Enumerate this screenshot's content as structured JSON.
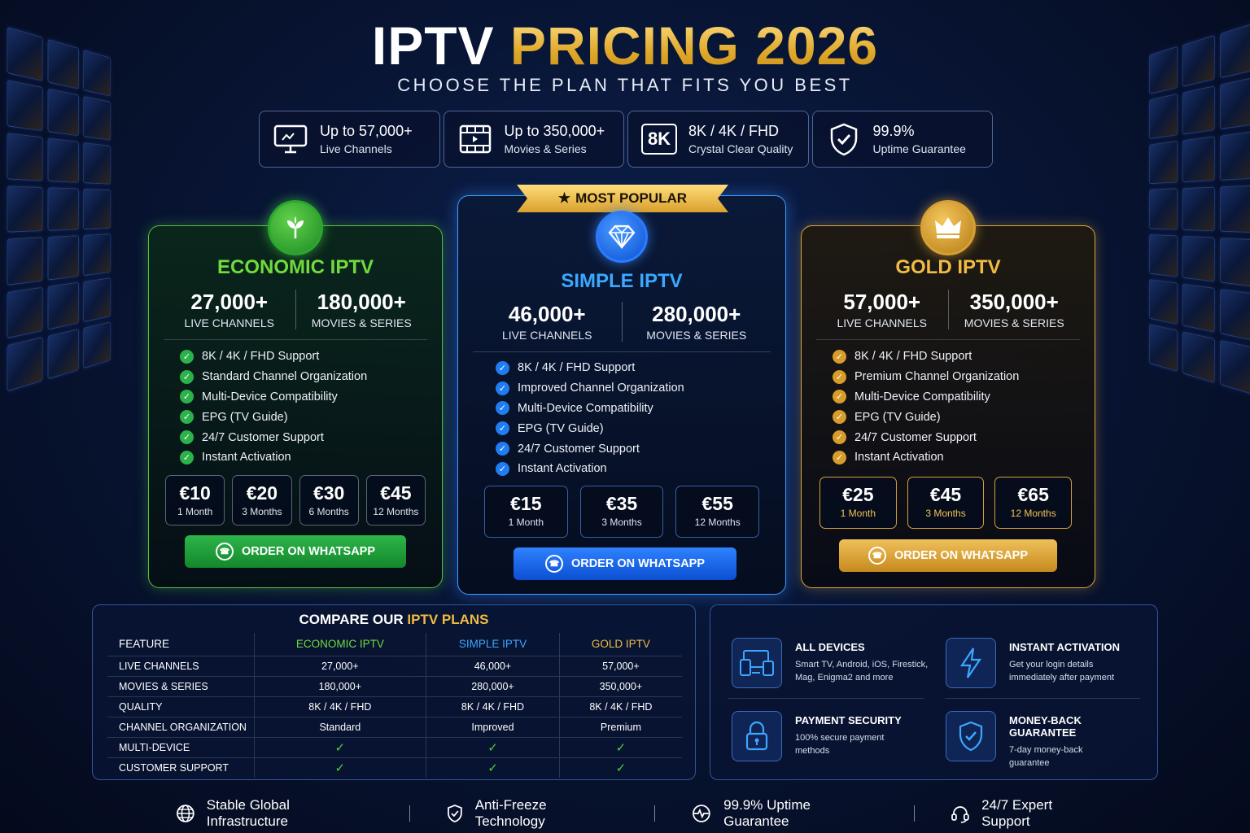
{
  "header": {
    "title_white": "IPTV",
    "title_gold": "PRICING 2026",
    "subtitle": "CHOOSE THE PLAN THAT FITS YOU BEST"
  },
  "stats": [
    {
      "icon": "monitor-icon",
      "big": "Up to 57,000+",
      "small": "Live Channels"
    },
    {
      "icon": "film-icon",
      "big": "Up to 350,000+",
      "small": "Movies & Series"
    },
    {
      "icon": "8k-badge-icon",
      "badge": "8K",
      "big": "8K / 4K / FHD",
      "small": "Crystal Clear Quality"
    },
    {
      "icon": "shield-check-icon",
      "big": "99.9%",
      "small": "Uptime Guarantee"
    }
  ],
  "plans": {
    "economic": {
      "name": "ECONOMIC IPTV",
      "color": "#6fdc3c",
      "icon": "leaf-icon",
      "channels": "27,000+",
      "channels_label": "LIVE CHANNELS",
      "movies": "180,000+",
      "movies_label": "MOVIES & SERIES",
      "features": [
        "8K / 4K / FHD Support",
        "Standard Channel Organization",
        "Multi-Device Compatibility",
        "EPG (TV Guide)",
        "24/7 Customer Support",
        "Instant Activation"
      ],
      "prices": [
        {
          "amount": "€10",
          "period": "1 Month"
        },
        {
          "amount": "€20",
          "period": "3 Months"
        },
        {
          "amount": "€30",
          "period": "6 Months"
        },
        {
          "amount": "€45",
          "period": "12 Months"
        }
      ],
      "order_label": "ORDER ON WHATSAPP"
    },
    "simple": {
      "name": "SIMPLE IPTV",
      "color": "#3aa8ff",
      "icon": "diamond-icon",
      "ribbon": "MOST POPULAR",
      "ribbon_star": "★",
      "channels": "46,000+",
      "channels_label": "LIVE CHANNELS",
      "movies": "280,000+",
      "movies_label": "MOVIES & SERIES",
      "features": [
        "8K / 4K / FHD Support",
        "Improved Channel Organization",
        "Multi-Device Compatibility",
        "EPG (TV Guide)",
        "24/7 Customer Support",
        "Instant Activation"
      ],
      "prices": [
        {
          "amount": "€15",
          "period": "1 Month"
        },
        {
          "amount": "€35",
          "period": "3 Months"
        },
        {
          "amount": "€55",
          "period": "12 Months"
        }
      ],
      "order_label": "ORDER ON WHATSAPP"
    },
    "gold": {
      "name": "GOLD IPTV",
      "color": "#f0bb45",
      "icon": "crown-icon",
      "channels": "57,000+",
      "channels_label": "LIVE CHANNELS",
      "movies": "350,000+",
      "movies_label": "MOVIES & SERIES",
      "features": [
        "8K / 4K / FHD Support",
        "Premium Channel Organization",
        "Multi-Device Compatibility",
        "EPG (TV Guide)",
        "24/7 Customer Support",
        "Instant Activation"
      ],
      "prices": [
        {
          "amount": "€25",
          "period": "1 Month"
        },
        {
          "amount": "€45",
          "period": "3 Months"
        },
        {
          "amount": "€65",
          "period": "12 Months"
        }
      ],
      "order_label": "ORDER ON WHATSAPP"
    }
  },
  "compare": {
    "title_white": "COMPARE OUR",
    "title_gold": "IPTV PLANS",
    "headers": [
      "FEATURE",
      "ECONOMIC IPTV",
      "SIMPLE IPTV",
      "GOLD IPTV"
    ],
    "rows": [
      [
        "LIVE CHANNELS",
        "27,000+",
        "46,000+",
        "57,000+"
      ],
      [
        "MOVIES & SERIES",
        "180,000+",
        "280,000+",
        "350,000+"
      ],
      [
        "QUALITY",
        "8K / 4K / FHD",
        "8K / 4K / FHD",
        "8K / 4K / FHD"
      ],
      [
        "CHANNEL ORGANIZATION",
        "Standard",
        "Improved",
        "Premium"
      ],
      [
        "MULTI-DEVICE",
        "✓",
        "✓",
        "✓"
      ],
      [
        "CUSTOMER SUPPORT",
        "✓",
        "✓",
        "✓"
      ]
    ]
  },
  "benefits": [
    {
      "icon": "devices-icon",
      "title": "ALL DEVICES",
      "desc1": "Smart TV, Android, iOS, Firestick,",
      "desc2": "Mag, Enigma2 and more"
    },
    {
      "icon": "lightning-icon",
      "title": "INSTANT ACTIVATION",
      "desc1": "Get your login details",
      "desc2": "immediately after payment"
    },
    {
      "icon": "lock-icon",
      "title": "PAYMENT SECURITY",
      "desc1": "100% secure payment",
      "desc2": "methods"
    },
    {
      "icon": "shield-check-icon",
      "title": "MONEY-BACK GUARANTEE",
      "desc1": "7-day money-back",
      "desc2": "guarantee"
    }
  ],
  "footer": [
    {
      "icon": "globe-icon",
      "label": "Stable Global Infrastructure"
    },
    {
      "icon": "shield-icon",
      "label": "Anti-Freeze Technology"
    },
    {
      "icon": "pulse-icon",
      "label": "99.9% Uptime Guarantee"
    },
    {
      "icon": "headset-icon",
      "label": "24/7 Expert Support"
    }
  ]
}
